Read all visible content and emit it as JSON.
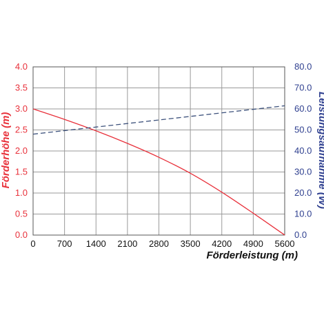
{
  "chart_data": {
    "type": "line",
    "xlabel": "Förderleistung (m)",
    "ylabel_left": "Förderhöhe (m)",
    "ylabel_right": "Leistungsaufnahme (W)",
    "xlim": [
      0,
      5600
    ],
    "ylim_left": [
      0,
      4.0
    ],
    "ylim_right": [
      0,
      80.0
    ],
    "grid": true,
    "x_ticks": [
      "0",
      "700",
      "1400",
      "2100",
      "2800",
      "3500",
      "4200",
      "4900",
      "5600"
    ],
    "y_left_ticks": [
      "0.0",
      "0.5",
      "1.0",
      "1.5",
      "2.0",
      "2.5",
      "3.0",
      "3.5",
      "4.0"
    ],
    "y_right_ticks": [
      "0.0",
      "10.0",
      "20.0",
      "30.0",
      "40.0",
      "50.0",
      "60.0",
      "70.0",
      "80.0"
    ],
    "series": [
      {
        "axis": "left",
        "color": "#e8303a",
        "style": "solid",
        "x": [
          0,
          700,
          1400,
          2100,
          2800,
          3500,
          4200,
          4900,
          5600
        ],
        "values": [
          3.0,
          2.75,
          2.48,
          2.18,
          1.85,
          1.47,
          1.02,
          0.52,
          0.0
        ]
      },
      {
        "axis": "right",
        "color": "#3a4f7a",
        "style": "dashed",
        "x": [
          0,
          5600
        ],
        "values": [
          48.0,
          61.5
        ]
      }
    ]
  },
  "colors": {
    "left_axis": "#e8303a",
    "right_axis": "#2e3f8f",
    "x_axis": "#111111",
    "grid": "#999999"
  }
}
